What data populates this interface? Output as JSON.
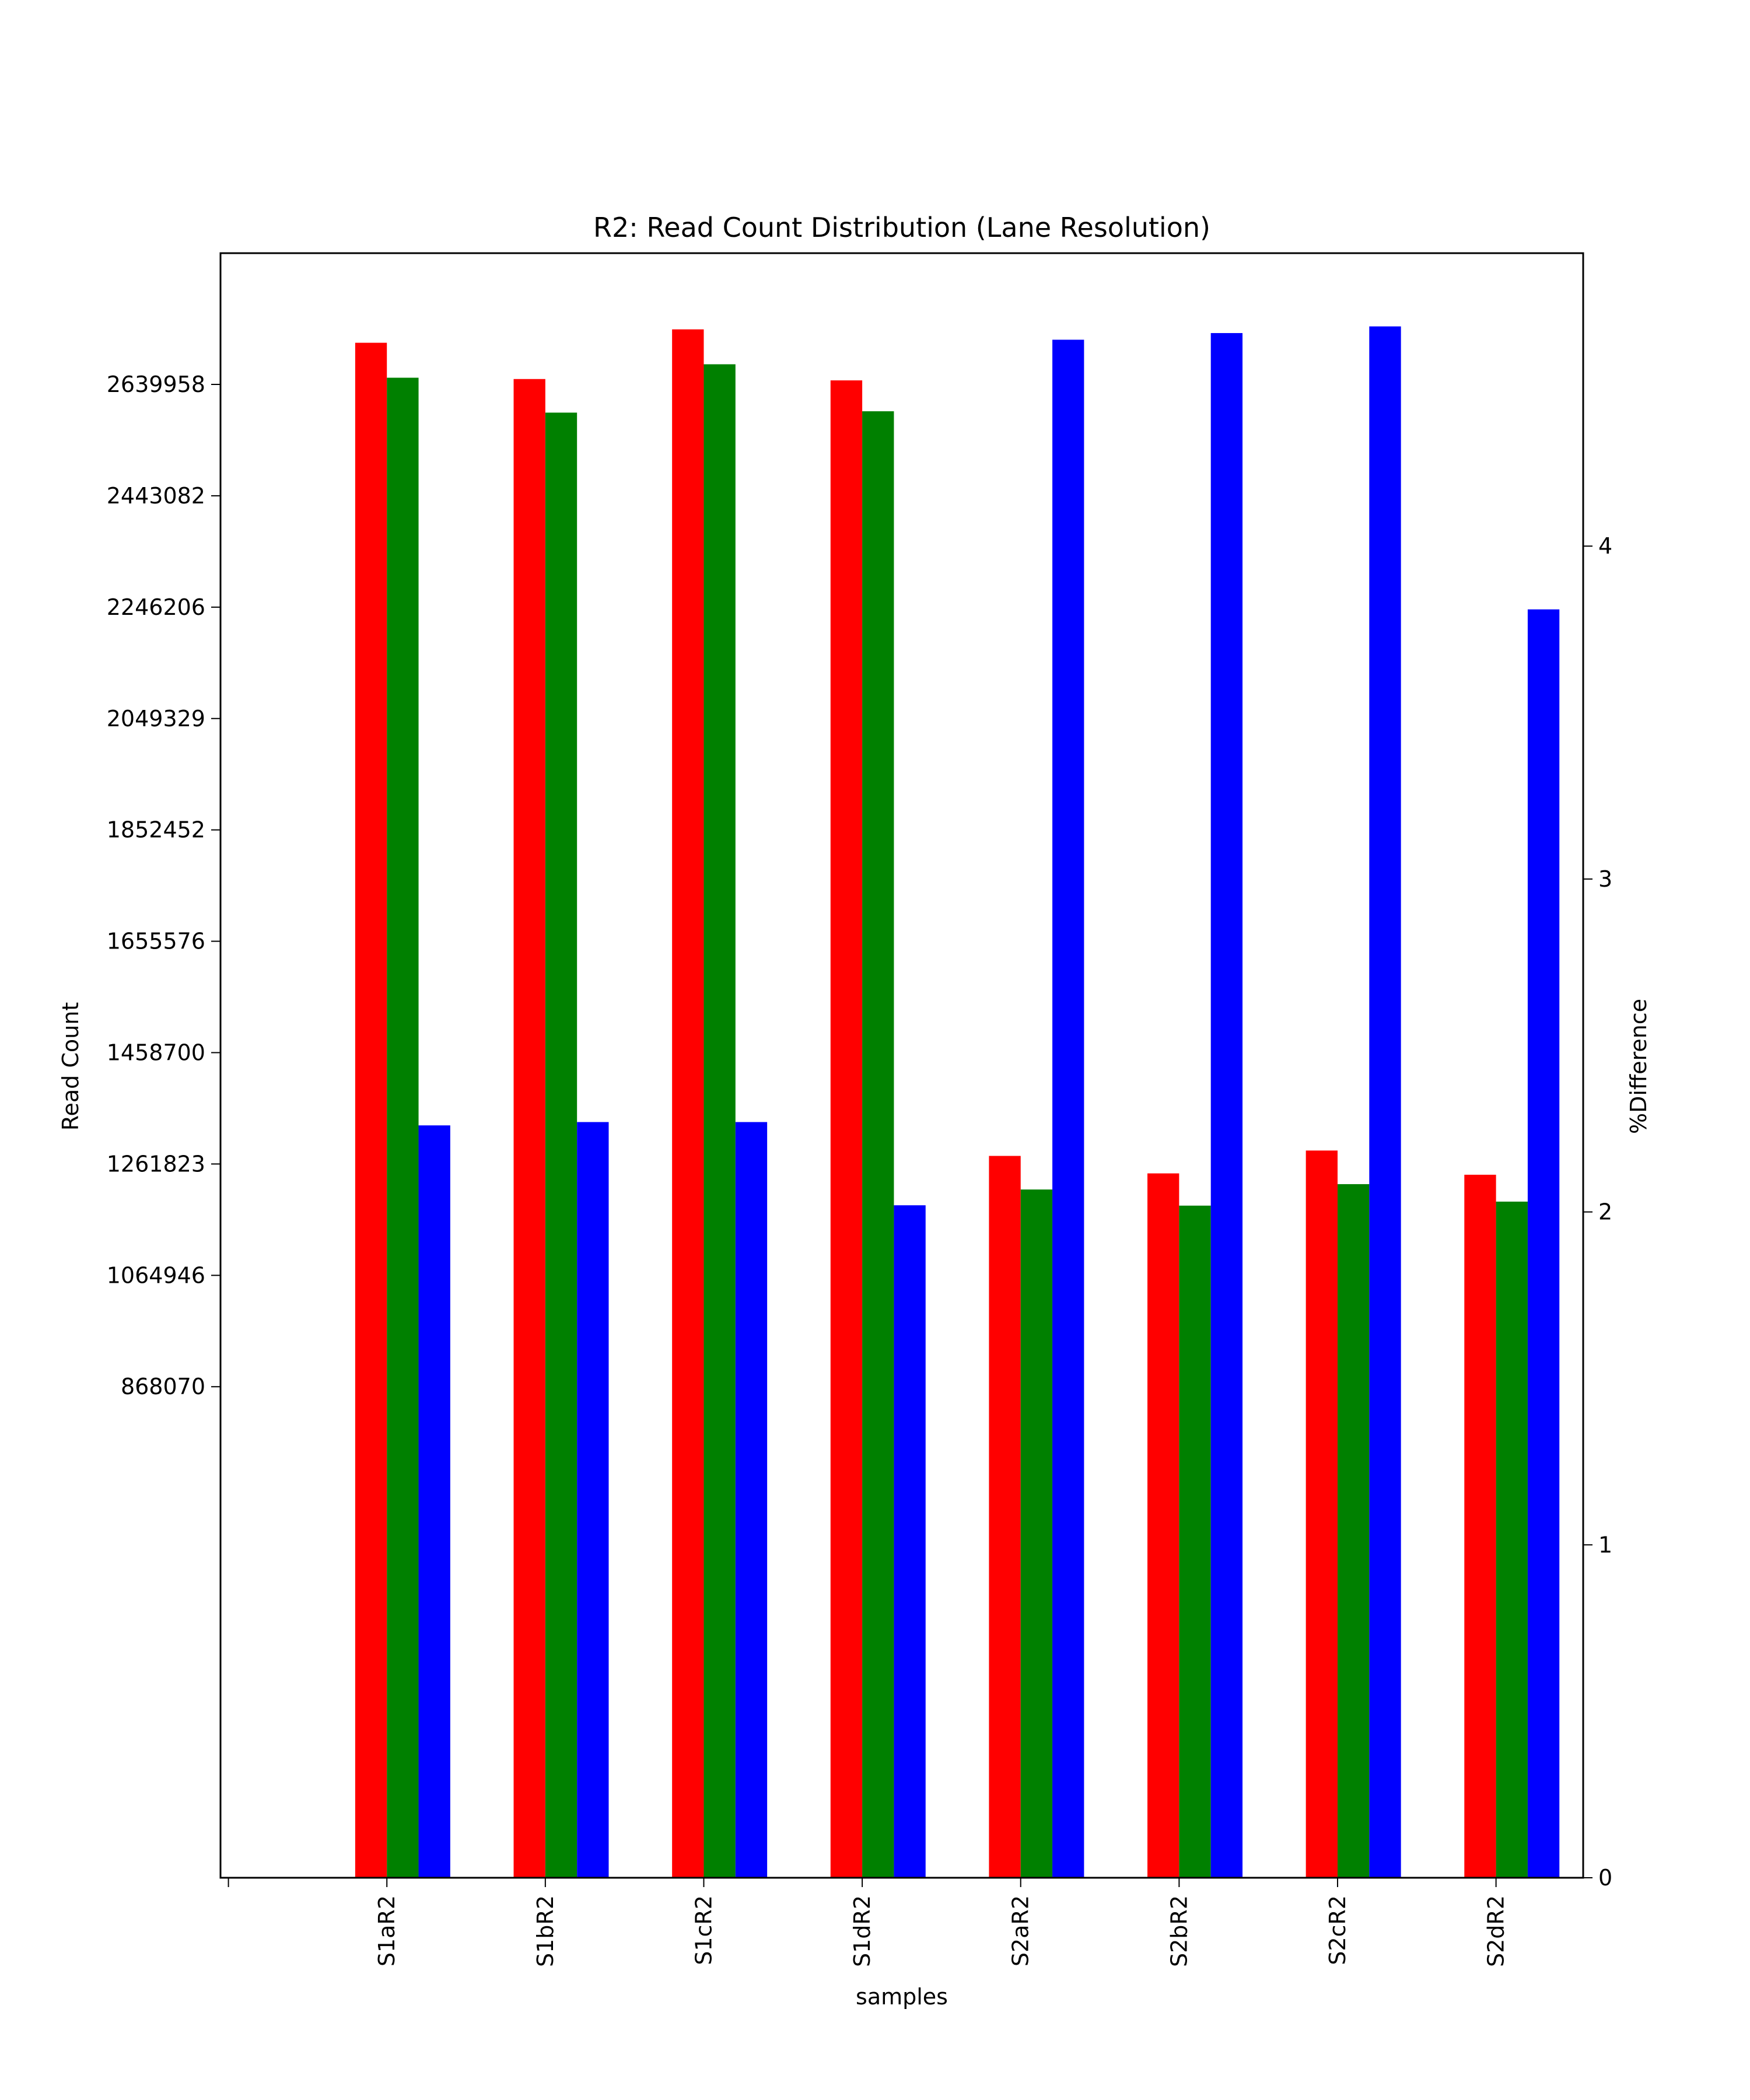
{
  "chart_data": {
    "type": "bar",
    "title": "R2: Read Count Distribution (Lane Resolution)",
    "xlabel": "samples",
    "ylabel": "Read Count",
    "ylabel_right": "%Difference",
    "x_tick_labels": [
      "",
      "S1aR2",
      "S1bR2",
      "S1cR2",
      "S1dR2",
      "S2aR2",
      "S2bR2",
      "S2cR2",
      "S2dR2"
    ],
    "categories": [
      "S1aR2",
      "S1bR2",
      "S1cR2",
      "S1dR2",
      "S2aR2",
      "S2bR2",
      "S2cR2",
      "S2dR2"
    ],
    "xlim": [
      -0.05,
      8.55
    ],
    "ylim": [
      0,
      2872000
    ],
    "ylim_right": [
      0,
      4.88
    ],
    "yticks": [
      868070,
      1064946,
      1261823,
      1458700,
      1655576,
      1852452,
      2049329,
      2246206,
      2443082,
      2639958
    ],
    "yticks_right": [
      0,
      1,
      2,
      3,
      4
    ],
    "grid": false,
    "legend": "none",
    "series": [
      {
        "color": "#ff0000",
        "axis": "left",
        "offset": -0.2,
        "values": [
          2713600,
          2649500,
          2737300,
          2647100,
          1276100,
          1245200,
          1285600,
          1242800
        ]
      },
      {
        "color": "#008000",
        "axis": "left",
        "offset": 0.0,
        "values": [
          2651800,
          2590100,
          2675600,
          2592500,
          1216700,
          1188200,
          1226200,
          1195300
        ]
      },
      {
        "color": "#0000ff",
        "axis": "right",
        "offset": 0.2,
        "values": [
          2.26,
          2.27,
          2.27,
          2.02,
          4.62,
          4.64,
          4.66,
          3.81
        ]
      }
    ]
  }
}
